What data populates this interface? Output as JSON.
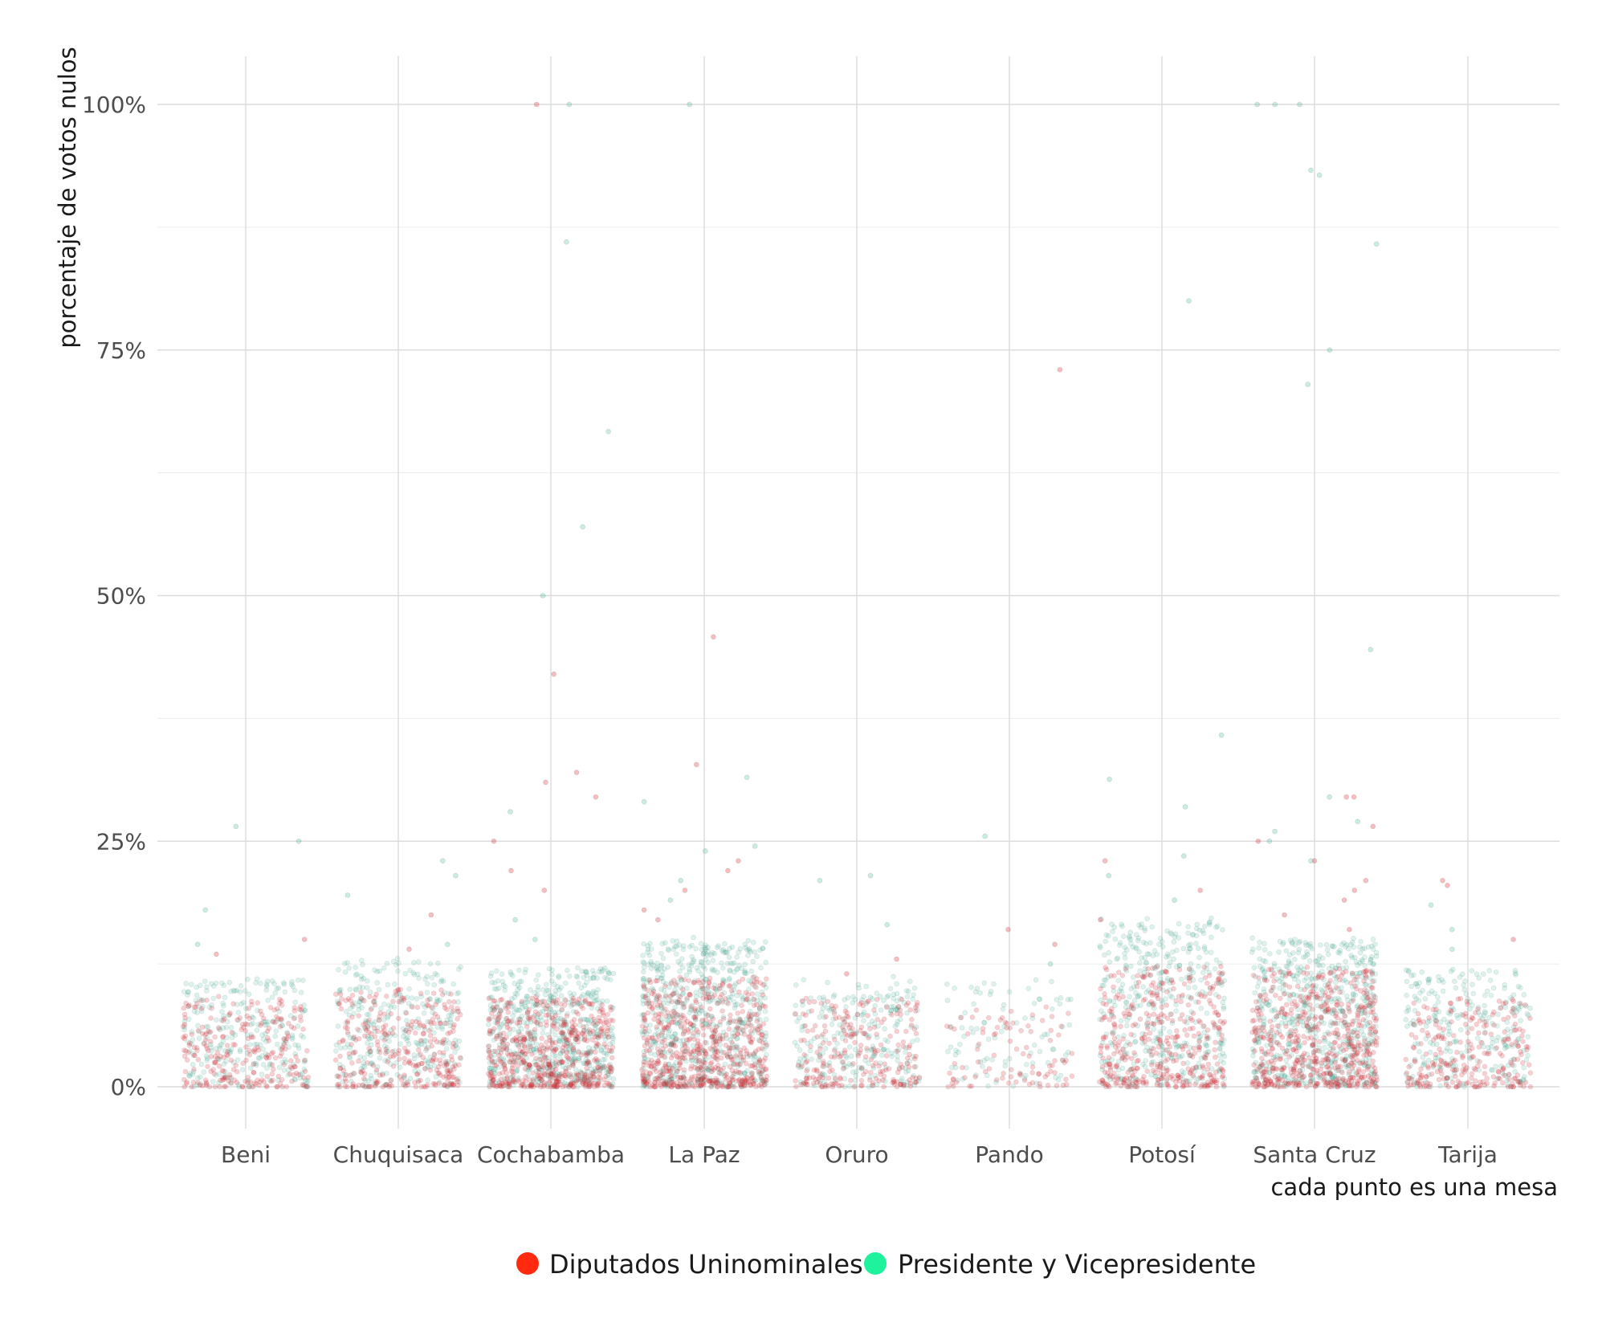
{
  "chart_data": {
    "type": "scatter",
    "title": "",
    "ylabel": "porcentaje de votos nulos",
    "xlabel": "cada punto es una mesa",
    "categories": [
      "Beni",
      "Chuquisaca",
      "Cochabamba",
      "La Paz",
      "Oruro",
      "Pando",
      "Potosí",
      "Santa Cruz",
      "Tarija"
    ],
    "ylim": [
      -4,
      105
    ],
    "y_ticks": [
      0,
      25,
      50,
      75,
      100
    ],
    "y_tick_labels": [
      "0%",
      "25%",
      "50%",
      "75%",
      "100%"
    ],
    "grid": true,
    "legend_position": "bottom",
    "series": [
      {
        "name": "Diputados Uninominales",
        "color": "#f8766d",
        "point_color": "#e3262d",
        "legend_color": "#ff2a0f",
        "distribution": {
          "Beni": {
            "count": 1500,
            "typical_max": 9
          },
          "Chuquisaca": {
            "count": 1800,
            "typical_max": 10
          },
          "Cochabamba": {
            "count": 3300,
            "typical_max": 9
          },
          "La Paz": {
            "count": 3600,
            "typical_max": 11
          },
          "Oruro": {
            "count": 1400,
            "typical_max": 9
          },
          "Pando": {
            "count": 550,
            "typical_max": 8
          },
          "Potosí": {
            "count": 2400,
            "typical_max": 12
          },
          "Santa Cruz": {
            "count": 3500,
            "typical_max": 12
          },
          "Tarija": {
            "count": 1500,
            "typical_max": 9
          }
        },
        "outliers": [
          {
            "x": "Beni",
            "y": 15
          },
          {
            "x": "Beni",
            "y": 13.5
          },
          {
            "x": "Chuquisaca",
            "y": 17.5
          },
          {
            "x": "Chuquisaca",
            "y": 14
          },
          {
            "x": "Cochabamba",
            "y": 100
          },
          {
            "x": "Cochabamba",
            "y": 42
          },
          {
            "x": "Cochabamba",
            "y": 32
          },
          {
            "x": "Cochabamba",
            "y": 31
          },
          {
            "x": "Cochabamba",
            "y": 29.5
          },
          {
            "x": "Cochabamba",
            "y": 25
          },
          {
            "x": "Cochabamba",
            "y": 22
          },
          {
            "x": "Cochabamba",
            "y": 20
          },
          {
            "x": "La Paz",
            "y": 45.8
          },
          {
            "x": "La Paz",
            "y": 32.8
          },
          {
            "x": "La Paz",
            "y": 23
          },
          {
            "x": "La Paz",
            "y": 22
          },
          {
            "x": "La Paz",
            "y": 20
          },
          {
            "x": "La Paz",
            "y": 18
          },
          {
            "x": "La Paz",
            "y": 17
          },
          {
            "x": "Oruro",
            "y": 13
          },
          {
            "x": "Oruro",
            "y": 11.5
          },
          {
            "x": "Pando",
            "y": 73
          },
          {
            "x": "Pando",
            "y": 16
          },
          {
            "x": "Pando",
            "y": 14.5
          },
          {
            "x": "Potosí",
            "y": 23
          },
          {
            "x": "Potosí",
            "y": 20
          },
          {
            "x": "Potosí",
            "y": 17
          },
          {
            "x": "Santa Cruz",
            "y": 29.5
          },
          {
            "x": "Santa Cruz",
            "y": 29.5
          },
          {
            "x": "Santa Cruz",
            "y": 26.5
          },
          {
            "x": "Santa Cruz",
            "y": 25
          },
          {
            "x": "Santa Cruz",
            "y": 23
          },
          {
            "x": "Santa Cruz",
            "y": 21
          },
          {
            "x": "Santa Cruz",
            "y": 20
          },
          {
            "x": "Santa Cruz",
            "y": 19
          },
          {
            "x": "Santa Cruz",
            "y": 17.5
          },
          {
            "x": "Santa Cruz",
            "y": 16
          },
          {
            "x": "Tarija",
            "y": 21
          },
          {
            "x": "Tarija",
            "y": 20.5
          },
          {
            "x": "Tarija",
            "y": 15
          }
        ]
      },
      {
        "name": "Presidente y Vicepresidente",
        "color": "#00bfc4",
        "point_color": "#4cc0a6",
        "legend_color": "#1ef29d",
        "distribution": {
          "Beni": {
            "count": 1500,
            "typical_max": 11
          },
          "Chuquisaca": {
            "count": 1800,
            "typical_max": 13
          },
          "Cochabamba": {
            "count": 3300,
            "typical_max": 12
          },
          "La Paz": {
            "count": 3600,
            "typical_max": 15
          },
          "Oruro": {
            "count": 1400,
            "typical_max": 11
          },
          "Pando": {
            "count": 550,
            "typical_max": 11
          },
          "Potosí": {
            "count": 2400,
            "typical_max": 17
          },
          "Santa Cruz": {
            "count": 3500,
            "typical_max": 15
          },
          "Tarija": {
            "count": 1500,
            "typical_max": 12
          }
        },
        "outliers": [
          {
            "x": "Beni",
            "y": 26.5
          },
          {
            "x": "Beni",
            "y": 25
          },
          {
            "x": "Beni",
            "y": 18
          },
          {
            "x": "Beni",
            "y": 14.5
          },
          {
            "x": "Chuquisaca",
            "y": 23
          },
          {
            "x": "Chuquisaca",
            "y": 21.5
          },
          {
            "x": "Chuquisaca",
            "y": 19.5
          },
          {
            "x": "Chuquisaca",
            "y": 14.5
          },
          {
            "x": "Cochabamba",
            "y": 100
          },
          {
            "x": "Cochabamba",
            "y": 86
          },
          {
            "x": "Cochabamba",
            "y": 66.7
          },
          {
            "x": "Cochabamba",
            "y": 57
          },
          {
            "x": "Cochabamba",
            "y": 50
          },
          {
            "x": "Cochabamba",
            "y": 28
          },
          {
            "x": "Cochabamba",
            "y": 17
          },
          {
            "x": "Cochabamba",
            "y": 15
          },
          {
            "x": "La Paz",
            "y": 100
          },
          {
            "x": "La Paz",
            "y": 31.5
          },
          {
            "x": "La Paz",
            "y": 29
          },
          {
            "x": "La Paz",
            "y": 24.5
          },
          {
            "x": "La Paz",
            "y": 24
          },
          {
            "x": "La Paz",
            "y": 21
          },
          {
            "x": "La Paz",
            "y": 19
          },
          {
            "x": "Oruro",
            "y": 21.5
          },
          {
            "x": "Oruro",
            "y": 21
          },
          {
            "x": "Oruro",
            "y": 16.5
          },
          {
            "x": "Pando",
            "y": 25.5
          },
          {
            "x": "Pando",
            "y": 12.5
          },
          {
            "x": "Potosí",
            "y": 80
          },
          {
            "x": "Potosí",
            "y": 35.8
          },
          {
            "x": "Potosí",
            "y": 31.3
          },
          {
            "x": "Potosí",
            "y": 28.5
          },
          {
            "x": "Potosí",
            "y": 23.5
          },
          {
            "x": "Potosí",
            "y": 21.5
          },
          {
            "x": "Potosí",
            "y": 19
          },
          {
            "x": "Santa Cruz",
            "y": 100
          },
          {
            "x": "Santa Cruz",
            "y": 100
          },
          {
            "x": "Santa Cruz",
            "y": 100
          },
          {
            "x": "Santa Cruz",
            "y": 93.3
          },
          {
            "x": "Santa Cruz",
            "y": 92.8
          },
          {
            "x": "Santa Cruz",
            "y": 85.8
          },
          {
            "x": "Santa Cruz",
            "y": 75
          },
          {
            "x": "Santa Cruz",
            "y": 71.5
          },
          {
            "x": "Santa Cruz",
            "y": 44.5
          },
          {
            "x": "Santa Cruz",
            "y": 29.5
          },
          {
            "x": "Santa Cruz",
            "y": 27
          },
          {
            "x": "Santa Cruz",
            "y": 26
          },
          {
            "x": "Santa Cruz",
            "y": 25
          },
          {
            "x": "Santa Cruz",
            "y": 23
          },
          {
            "x": "Tarija",
            "y": 18.5
          },
          {
            "x": "Tarija",
            "y": 16
          },
          {
            "x": "Tarija",
            "y": 14
          }
        ]
      }
    ]
  }
}
